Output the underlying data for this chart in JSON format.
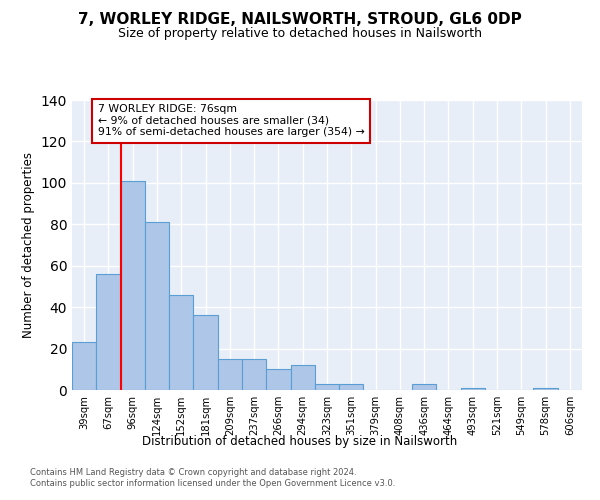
{
  "title": "7, WORLEY RIDGE, NAILSWORTH, STROUD, GL6 0DP",
  "subtitle": "Size of property relative to detached houses in Nailsworth",
  "xlabel": "Distribution of detached houses by size in Nailsworth",
  "ylabel": "Number of detached properties",
  "categories": [
    "39sqm",
    "67sqm",
    "96sqm",
    "124sqm",
    "152sqm",
    "181sqm",
    "209sqm",
    "237sqm",
    "266sqm",
    "294sqm",
    "323sqm",
    "351sqm",
    "379sqm",
    "408sqm",
    "436sqm",
    "464sqm",
    "493sqm",
    "521sqm",
    "549sqm",
    "578sqm",
    "606sqm"
  ],
  "values": [
    23,
    56,
    101,
    81,
    46,
    36,
    15,
    15,
    10,
    12,
    3,
    3,
    0,
    0,
    3,
    0,
    1,
    0,
    0,
    1,
    0
  ],
  "bar_color": "#aec6e8",
  "bar_edge_color": "#5a9fd4",
  "background_color": "#e8eef8",
  "grid_color": "#ffffff",
  "red_line_x": 1.5,
  "annotation_text": "7 WORLEY RIDGE: 76sqm\n← 9% of detached houses are smaller (34)\n91% of semi-detached houses are larger (354) →",
  "annotation_box_color": "#ffffff",
  "annotation_box_edge": "#cc0000",
  "ylim": [
    0,
    140
  ],
  "yticks": [
    0,
    20,
    40,
    60,
    80,
    100,
    120,
    140
  ],
  "footer": "Contains HM Land Registry data © Crown copyright and database right 2024.\nContains public sector information licensed under the Open Government Licence v3.0."
}
